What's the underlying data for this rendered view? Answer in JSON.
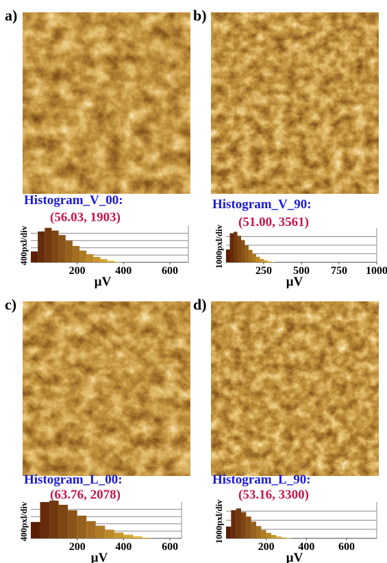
{
  "panels": [
    {
      "label": "a)",
      "histogram_title": "Histogram_V_00:",
      "peak_label": "(56.03, 1903)",
      "y_label": "400pxl/div",
      "x_label": "µV",
      "xlim": [
        0,
        680
      ],
      "xticks": [
        200,
        400,
        600
      ],
      "ylim": [
        0,
        2000
      ],
      "ygrid": [
        400,
        800,
        1200,
        1600
      ],
      "bins": [
        0,
        30,
        60,
        90,
        120,
        150,
        180,
        210,
        240,
        270,
        300,
        330,
        360,
        390
      ],
      "counts": [
        600,
        1700,
        1900,
        1750,
        1500,
        1200,
        900,
        650,
        450,
        300,
        180,
        90,
        30
      ]
    },
    {
      "label": "b)",
      "histogram_title": "Histogram_V_90:",
      "peak_label": "(51.00, 3561)",
      "y_label": "1000pxl/div",
      "x_label": "µV",
      "xlim": [
        0,
        1000
      ],
      "xticks": [
        250,
        500,
        750,
        1000
      ],
      "ylim": [
        0,
        4000
      ],
      "ygrid": [
        1000,
        2000,
        3000
      ],
      "bins": [
        0,
        25,
        50,
        75,
        100,
        125,
        150,
        175,
        200,
        225,
        250,
        275,
        300,
        325
      ],
      "counts": [
        1500,
        3400,
        3561,
        3100,
        2600,
        2000,
        1450,
        1000,
        650,
        400,
        230,
        120,
        50
      ]
    },
    {
      "label": "c)",
      "histogram_title": "Histogram_L_00:",
      "peak_label": "(63.76, 2078)",
      "y_label": "400pxl/div",
      "x_label": "µV",
      "xlim": [
        0,
        650
      ],
      "xticks": [
        200,
        400,
        600
      ],
      "ylim": [
        0,
        2000
      ],
      "ygrid": [
        400,
        800,
        1200,
        1600
      ],
      "bins": [
        0,
        40,
        80,
        120,
        160,
        200,
        240,
        280,
        320,
        360,
        400,
        440,
        480,
        520
      ],
      "counts": [
        900,
        2000,
        2078,
        1850,
        1550,
        1250,
        950,
        700,
        480,
        320,
        200,
        110,
        40
      ]
    },
    {
      "label": "d)",
      "histogram_title": "Histogram_L_90:",
      "peak_label": "(53.16, 3300)",
      "y_label": "1000pxl/div",
      "x_label": "µV",
      "xlim": [
        0,
        750
      ],
      "xticks": [
        200,
        400,
        600
      ],
      "ylim": [
        0,
        4000
      ],
      "ygrid": [
        1000,
        2000,
        3000
      ],
      "bins": [
        0,
        25,
        50,
        75,
        100,
        125,
        150,
        175,
        200,
        225,
        250,
        275,
        300,
        325
      ],
      "counts": [
        1300,
        3100,
        3300,
        2900,
        2400,
        1850,
        1350,
        920,
        600,
        370,
        210,
        110,
        45
      ]
    }
  ]
}
